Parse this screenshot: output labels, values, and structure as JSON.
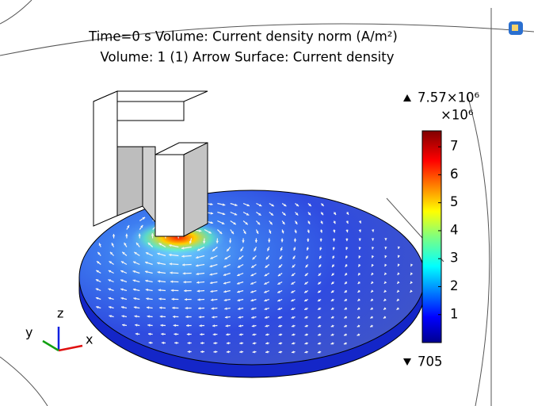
{
  "title_lines": [
    "Time=0 s   Volume: Current density norm (A/m²)",
    "Volume: 1 (1)  Arrow Surface: Current density"
  ],
  "colorbar": {
    "max_label": "7.57×10⁶",
    "multiplier": "×10⁶",
    "min_label": "705",
    "range": [
      0.000705,
      7.57
    ],
    "ticks": [
      1,
      2,
      3,
      4,
      5,
      6,
      7
    ]
  },
  "axes": {
    "x": "x",
    "y": "y",
    "z": "z"
  }
}
